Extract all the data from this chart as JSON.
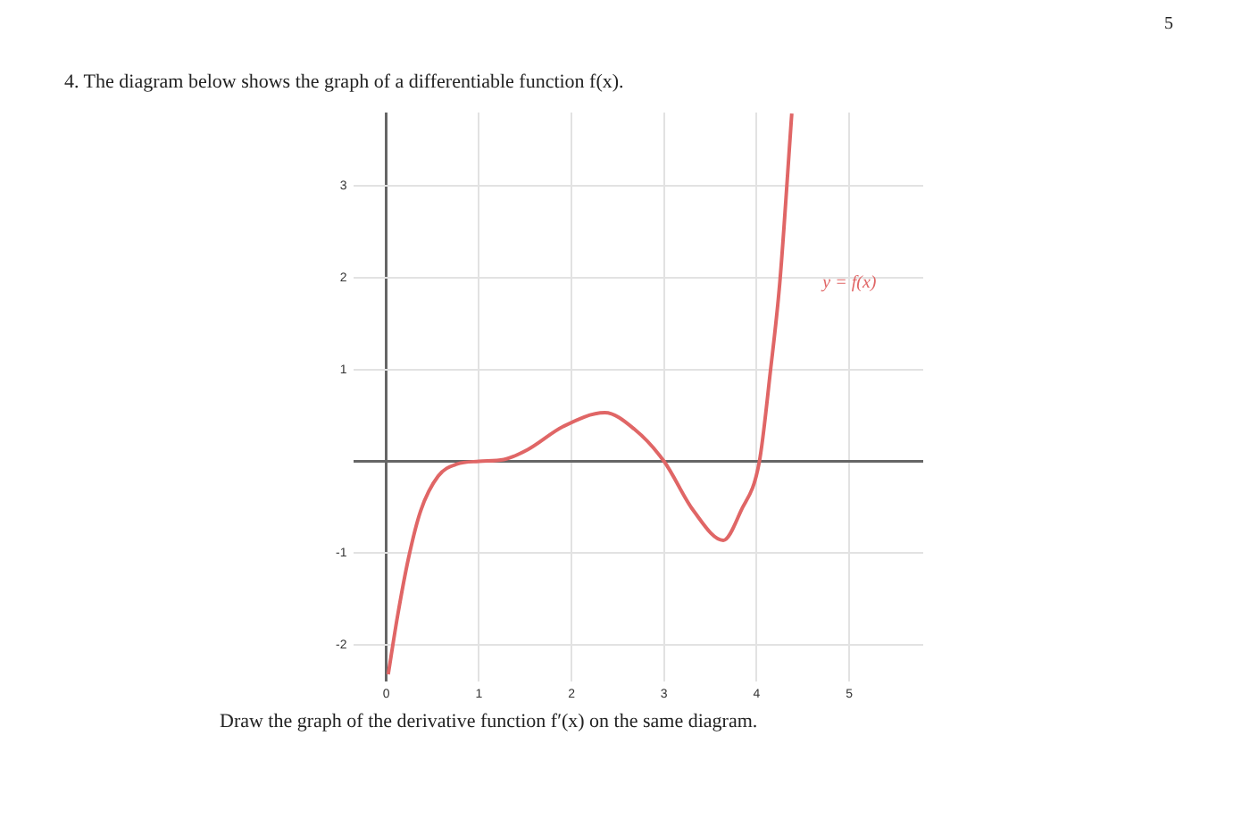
{
  "chart_data": {
    "type": "line",
    "title": "4. The diagram below shows the graph of a differentiable function f(x).",
    "annotations": [
      "Draw the graph of the derivative function f′(x) on the same diagram.",
      "5"
    ],
    "xlim": [
      -0.35,
      5.8
    ],
    "ylim": [
      -2.4,
      3.8
    ],
    "xticks": [
      0,
      1,
      2,
      3,
      4,
      5
    ],
    "yticks": [
      -2,
      -1,
      {
        "value": 0,
        "label": null
      },
      1,
      2,
      3
    ],
    "grid": true,
    "legend": false,
    "marker": "none",
    "line_style": "solid",
    "series": [
      {
        "name": "y = f(x)",
        "color": "#e06666",
        "x": [
          0.02,
          0.12,
          0.24,
          0.37,
          0.56,
          0.76,
          1,
          1.27,
          1.53,
          1.91,
          2.36,
          2.68,
          3,
          3.32,
          3.64,
          3.83,
          4.03,
          4.15,
          4.25,
          4.38
        ],
        "values": [
          -2.32,
          -1.69,
          -1.05,
          -0.54,
          -0.16,
          -0.03,
          0,
          0.02,
          0.13,
          0.38,
          0.53,
          0.35,
          0,
          -0.54,
          -0.86,
          -0.54,
          0,
          0.99,
          1.94,
          3.79
        ]
      }
    ]
  }
}
